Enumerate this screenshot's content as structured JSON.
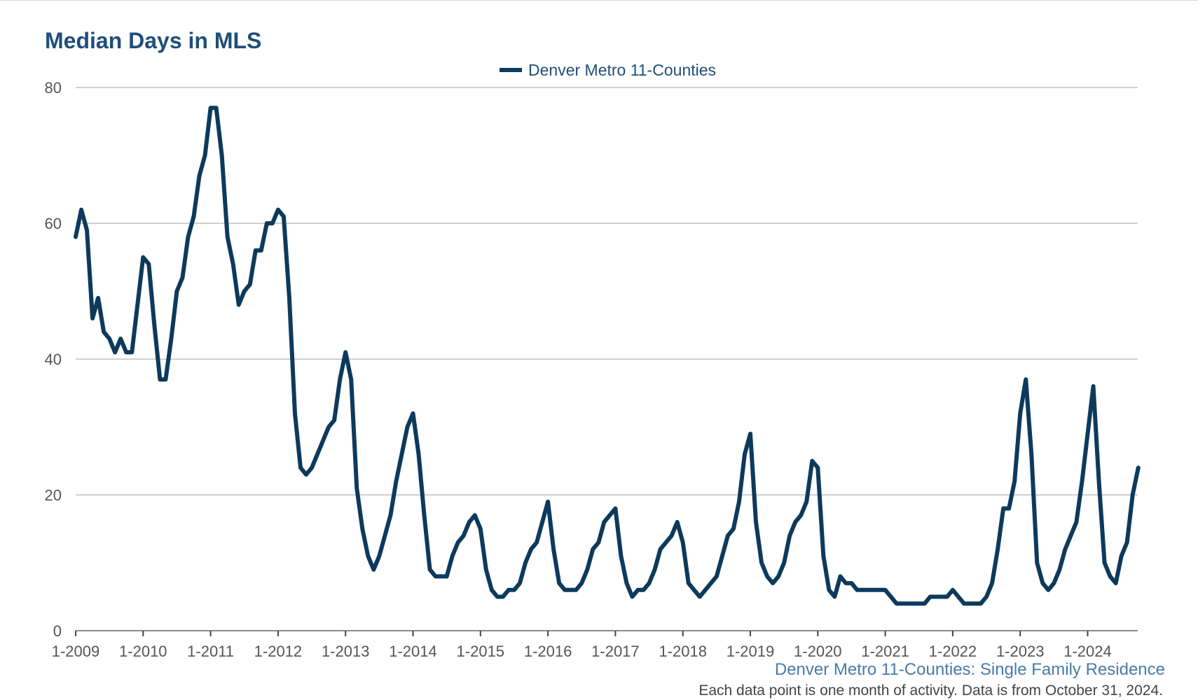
{
  "title": "Median Days in MLS",
  "source": "Denver Metro 11-Counties: Single Family Residence",
  "note": "Each data point is one month of activity. Data is from October 31, 2024.",
  "colors": {
    "series": "#0d3a5c",
    "title": "#1f4e79",
    "source": "#4a7aa8",
    "grid": "#b3b3b3"
  },
  "chart_data": {
    "type": "line",
    "title": "Median Days in MLS",
    "xlabel": "",
    "ylabel": "",
    "ylim": [
      0,
      80
    ],
    "yticks": [
      0,
      20,
      40,
      60,
      80
    ],
    "x_start": "1-2009",
    "x_end": "10-2024",
    "xticks": [
      "1-2009",
      "1-2010",
      "1-2011",
      "1-2012",
      "1-2013",
      "1-2014",
      "1-2015",
      "1-2016",
      "1-2017",
      "1-2018",
      "1-2019",
      "1-2020",
      "1-2021",
      "1-2022",
      "1-2023",
      "1-2024"
    ],
    "grid": true,
    "legend_position": "top-center",
    "series": [
      {
        "name": "Denver Metro 11-Counties",
        "values": [
          58,
          62,
          59,
          46,
          49,
          44,
          43,
          41,
          43,
          41,
          41,
          48,
          55,
          54,
          45,
          37,
          37,
          43,
          50,
          52,
          58,
          61,
          67,
          70,
          77,
          77,
          70,
          58,
          54,
          48,
          50,
          51,
          56,
          56,
          60,
          60,
          62,
          61,
          49,
          32,
          24,
          23,
          24,
          26,
          28,
          30,
          31,
          37,
          41,
          37,
          21,
          15,
          11,
          9,
          11,
          14,
          17,
          22,
          26,
          30,
          32,
          26,
          17,
          9,
          8,
          8,
          8,
          11,
          13,
          14,
          16,
          17,
          15,
          9,
          6,
          5,
          5,
          6,
          6,
          7,
          10,
          12,
          13,
          16,
          19,
          12,
          7,
          6,
          6,
          6,
          7,
          9,
          12,
          13,
          16,
          17,
          18,
          11,
          7,
          5,
          6,
          6,
          7,
          9,
          12,
          13,
          14,
          16,
          13,
          7,
          6,
          5,
          6,
          7,
          8,
          11,
          14,
          15,
          19,
          26,
          29,
          16,
          10,
          8,
          7,
          8,
          10,
          14,
          16,
          17,
          19,
          25,
          24,
          11,
          6,
          5,
          8,
          7,
          7,
          6,
          6,
          6,
          6,
          6,
          6,
          5,
          4,
          4,
          4,
          4,
          4,
          4,
          5,
          5,
          5,
          5,
          6,
          5,
          4,
          4,
          4,
          4,
          5,
          7,
          12,
          18,
          18,
          22,
          32,
          37,
          26,
          10,
          7,
          6,
          7,
          9,
          12,
          14,
          16,
          22,
          29,
          36,
          22,
          10,
          8,
          7,
          11,
          13,
          20,
          24
        ]
      }
    ]
  }
}
